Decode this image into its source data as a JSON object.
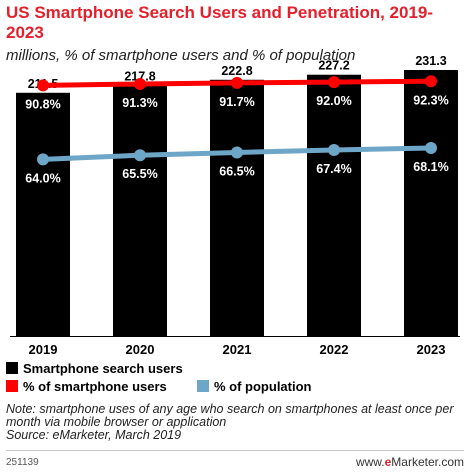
{
  "chart_data": {
    "type": "bar",
    "title": "US Smartphone Search Users and Penetration, 2019-2023",
    "subtitle": "millions, % of smartphone users and % of population",
    "categories": [
      "2019",
      "2020",
      "2021",
      "2022",
      "2023"
    ],
    "series": [
      {
        "name": "Smartphone search users",
        "kind": "bar",
        "color": "#000000",
        "values": [
          211.5,
          217.8,
          222.8,
          227.2,
          231.3
        ],
        "labels": [
          "211.5",
          "217.8",
          "222.8",
          "227.2",
          "231.3"
        ]
      },
      {
        "name": "% of smartphone users",
        "kind": "line",
        "color": "#ff0000",
        "values": [
          90.8,
          91.3,
          91.7,
          92.0,
          92.3
        ],
        "labels": [
          "90.8%",
          "91.3%",
          "91.7%",
          "92.0%",
          "92.3%"
        ]
      },
      {
        "name": "% of population",
        "kind": "line",
        "color": "#6ea6c7",
        "values": [
          64.0,
          65.5,
          66.5,
          67.4,
          68.1
        ],
        "labels": [
          "64.0%",
          "65.5%",
          "66.5%",
          "67.4%",
          "68.1%"
        ]
      }
    ],
    "ylim": [
      0,
      240
    ],
    "ylim_percent": [
      0,
      100
    ],
    "grid": false,
    "legend_placement": "bottom"
  },
  "note": "Note: smartphone uses of any age who search on smartphones at least once per month via mobile browser or application",
  "source": "Source: eMarketer, March 2019",
  "chart_id": "251139",
  "brand": {
    "prefix": "www.",
    "e": "e",
    "rest": "Marketer",
    "suffix": ".com"
  }
}
